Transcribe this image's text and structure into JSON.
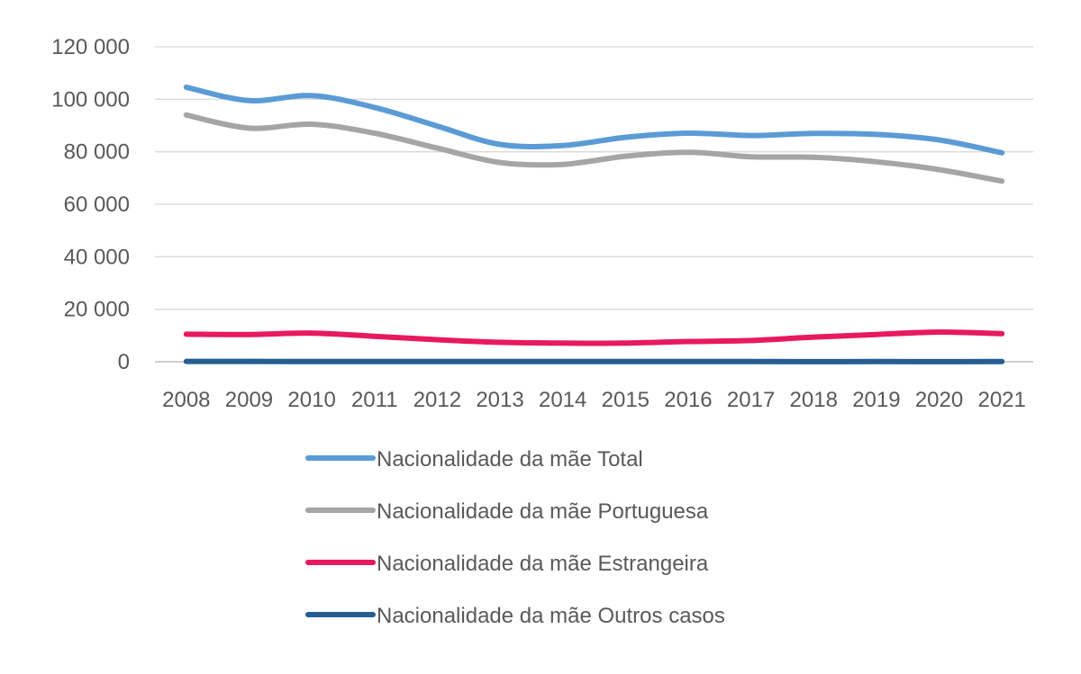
{
  "chart_data": {
    "type": "line",
    "title": "",
    "xlabel": "",
    "ylabel": "",
    "ylim": [
      0,
      120000
    ],
    "yticks": [
      0,
      20000,
      40000,
      60000,
      80000,
      100000,
      120000
    ],
    "ytick_labels": [
      "0",
      "20 000",
      "40 000",
      "60 000",
      "80 000",
      "100 000",
      "120 000"
    ],
    "grid": true,
    "legend_position": "bottom",
    "x": [
      "2008",
      "2009",
      "2010",
      "2011",
      "2012",
      "2013",
      "2014",
      "2015",
      "2016",
      "2017",
      "2018",
      "2019",
      "2020",
      "2021"
    ],
    "series": [
      {
        "name": "Nacionalidade da mãe Total",
        "color": "#5b9bd5",
        "values": [
          104600,
          99500,
          101400,
          96900,
          89800,
          82800,
          82400,
          85500,
          87100,
          86200,
          87000,
          86600,
          84500,
          79600
        ]
      },
      {
        "name": "Nacionalidade da mãe Portuguesa",
        "color": "#a5a5a5",
        "values": [
          94000,
          89000,
          90500,
          87100,
          81400,
          75900,
          75200,
          78300,
          79800,
          78100,
          77900,
          76200,
          73200,
          68800
        ]
      },
      {
        "name": "Nacionalidade da mãe Estrangeira",
        "color": "#e8195e",
        "values": [
          10500,
          10400,
          10900,
          9700,
          8400,
          7400,
          7100,
          7100,
          7700,
          8100,
          9400,
          10400,
          11300,
          10700
        ]
      },
      {
        "name": "Nacionalidade da mãe Outros casos",
        "color": "#255e91",
        "values": [
          150,
          120,
          100,
          90,
          80,
          70,
          80,
          70,
          70,
          60,
          50,
          60,
          40,
          80
        ]
      }
    ]
  }
}
